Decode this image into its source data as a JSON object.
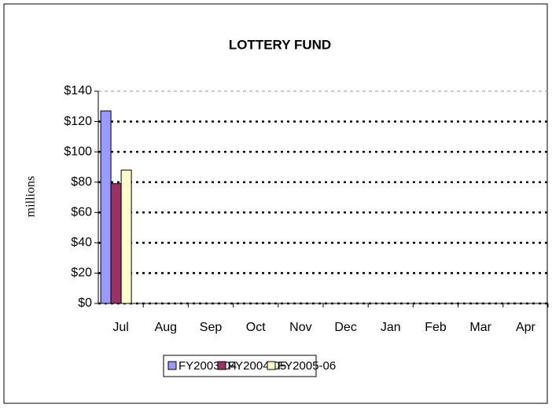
{
  "chart_data": {
    "type": "bar",
    "title": "LOTTERY FUND",
    "y_label": "millions",
    "categories": [
      "Jul",
      "Aug",
      "Sep",
      "Oct",
      "Nov",
      "Dec",
      "Jan",
      "Feb",
      "Mar",
      "Apr"
    ],
    "series": [
      {
        "name": "FY2003-04",
        "color": "#9999ff",
        "values": [
          127,
          null,
          null,
          null,
          null,
          null,
          null,
          null,
          null,
          null
        ]
      },
      {
        "name": "FY2004-05",
        "color": "#993366",
        "values": [
          79,
          null,
          null,
          null,
          null,
          null,
          null,
          null,
          null,
          null
        ]
      },
      {
        "name": "FY2005-06",
        "color": "#ffffcc",
        "values": [
          88,
          null,
          null,
          null,
          null,
          null,
          null,
          null,
          null,
          null
        ]
      }
    ],
    "ylim": [
      0,
      140
    ],
    "yticks": [
      {
        "value": 0,
        "label": "$0"
      },
      {
        "value": 20,
        "label": "$20"
      },
      {
        "value": 40,
        "label": "$40"
      },
      {
        "value": 60,
        "label": "$60"
      },
      {
        "value": 80,
        "label": "$80"
      },
      {
        "value": 100,
        "label": "$100"
      },
      {
        "value": 120,
        "label": "$120"
      },
      {
        "value": 140,
        "label": "$140"
      }
    ],
    "grid": true,
    "legend": "bottom"
  }
}
